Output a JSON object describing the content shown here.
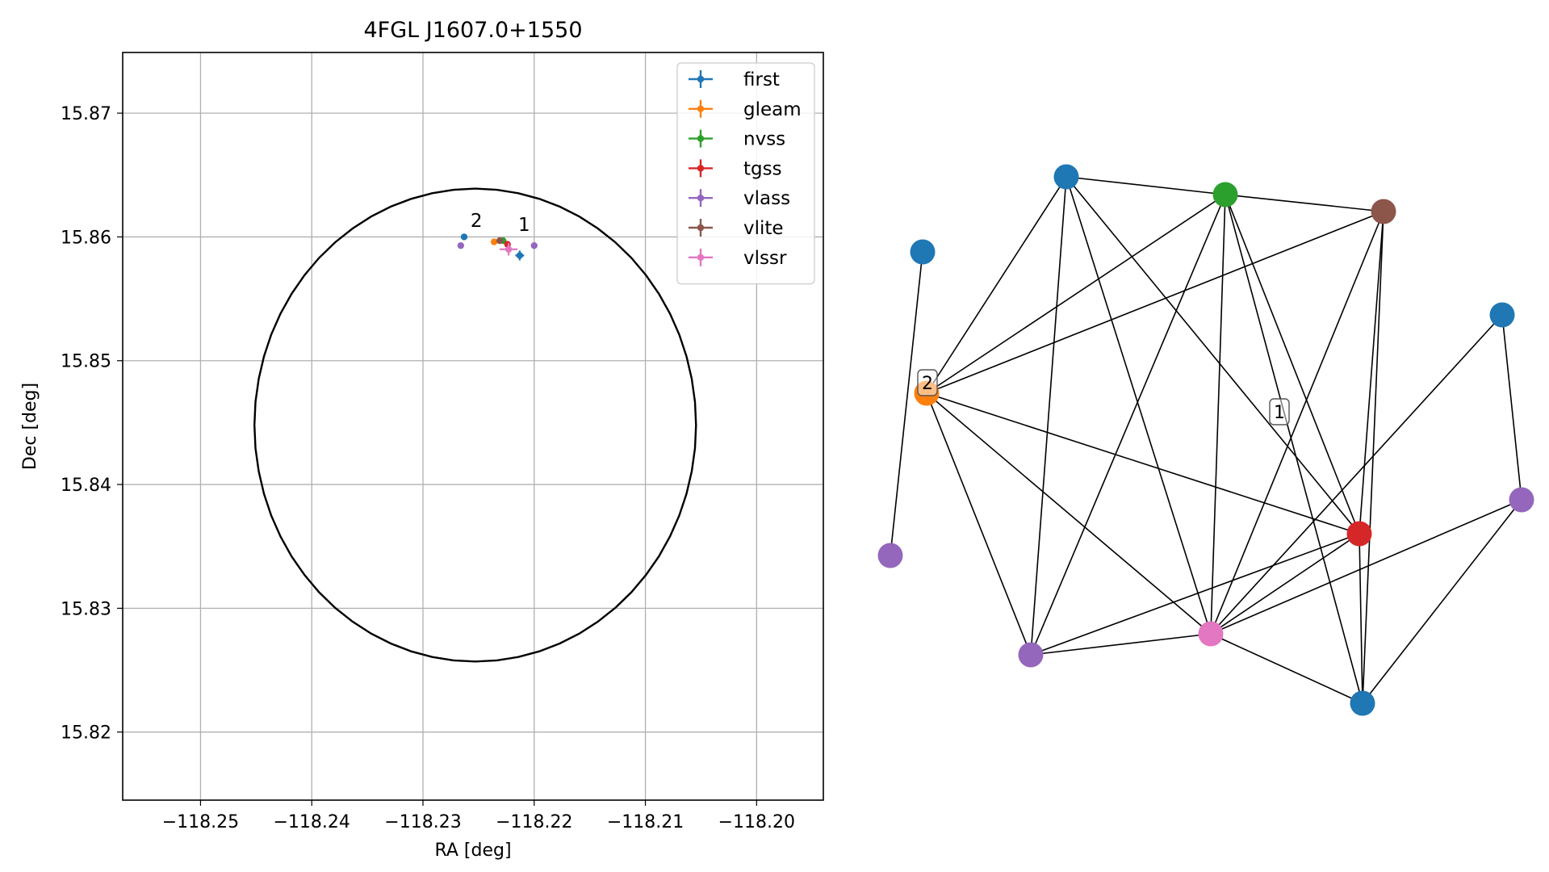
{
  "chart_data": [
    {
      "type": "scatter",
      "title": "4FGL J1607.0+1550",
      "xlabel": "RA [deg]",
      "ylabel": "Dec [deg]",
      "xlim": [
        -118.257,
        -118.194
      ],
      "ylim": [
        15.8145,
        15.8749
      ],
      "xticks": [
        -118.25,
        -118.24,
        -118.23,
        -118.22,
        -118.21,
        -118.2
      ],
      "xtick_labels": [
        "−118.25",
        "−118.24",
        "−118.23",
        "−118.22",
        "−118.21",
        "−118.20"
      ],
      "yticks": [
        15.82,
        15.83,
        15.84,
        15.85,
        15.86,
        15.87
      ],
      "ytick_labels": [
        "15.82",
        "15.83",
        "15.84",
        "15.85",
        "15.86",
        "15.87"
      ],
      "grid": true,
      "legend_position": "upper right",
      "circle": {
        "center": [
          -118.2253,
          15.8448
        ],
        "radius_dec": 0.0191,
        "color": "#000000"
      },
      "series": [
        {
          "name": "first",
          "color": "#1f77b4",
          "points": [
            {
              "x": -118.2213,
              "y": 15.8585,
              "xerr": 0.0004,
              "yerr": 0.0004
            },
            {
              "x": -118.2263,
              "y": 15.86
            }
          ]
        },
        {
          "name": "gleam",
          "color": "#ff7f0e",
          "points": [
            {
              "x": -118.2236,
              "y": 15.8596
            }
          ]
        },
        {
          "name": "nvss",
          "color": "#2ca02c",
          "points": [
            {
              "x": -118.2228,
              "y": 15.8597
            }
          ]
        },
        {
          "name": "tgss",
          "color": "#d62728",
          "points": [
            {
              "x": -118.2224,
              "y": 15.8594
            }
          ]
        },
        {
          "name": "vlass",
          "color": "#9467bd",
          "points": [
            {
              "x": -118.22,
              "y": 15.8593
            },
            {
              "x": -118.2266,
              "y": 15.8593
            }
          ]
        },
        {
          "name": "vlite",
          "color": "#8c564b",
          "points": [
            {
              "x": -118.2231,
              "y": 15.8597
            }
          ]
        },
        {
          "name": "vlssr",
          "color": "#e377c2",
          "points": [
            {
              "x": -118.2223,
              "y": 15.859,
              "xerr": 0.0008,
              "yerr": 0.0005
            }
          ]
        }
      ],
      "annotations": [
        {
          "text": "2",
          "x": -118.2252,
          "y": 15.8608
        },
        {
          "text": "1",
          "x": -118.2209,
          "y": 15.8605
        }
      ]
    },
    {
      "type": "network",
      "node_colors": {
        "first": "#1f77b4",
        "gleam": "#ff7f0e",
        "nvss": "#2ca02c",
        "tgss": "#d62728",
        "vlass": "#9467bd",
        "vlite": "#8c564b",
        "vlssr": "#e377c2"
      },
      "nodes": [
        {
          "id": "first_a",
          "survey": "first"
        },
        {
          "id": "first_b",
          "survey": "first"
        },
        {
          "id": "first_c",
          "survey": "first"
        },
        {
          "id": "first_d",
          "survey": "first"
        },
        {
          "id": "gleam",
          "survey": "gleam"
        },
        {
          "id": "nvss",
          "survey": "nvss"
        },
        {
          "id": "vlite",
          "survey": "vlite"
        },
        {
          "id": "tgss",
          "survey": "tgss"
        },
        {
          "id": "vlssr",
          "survey": "vlssr"
        },
        {
          "id": "vlass_a",
          "survey": "vlass"
        },
        {
          "id": "vlass_b",
          "survey": "vlass"
        },
        {
          "id": "vlass_c",
          "survey": "vlass"
        }
      ],
      "edges": [
        [
          "first_b",
          "vlass_a"
        ],
        [
          "first_a",
          "gleam"
        ],
        [
          "first_a",
          "nvss"
        ],
        [
          "first_a",
          "vlass_b"
        ],
        [
          "first_a",
          "vlssr"
        ],
        [
          "first_a",
          "tgss"
        ],
        [
          "nvss",
          "vlite"
        ],
        [
          "nvss",
          "gleam"
        ],
        [
          "nvss",
          "vlass_b"
        ],
        [
          "nvss",
          "vlssr"
        ],
        [
          "nvss",
          "tgss"
        ],
        [
          "nvss",
          "first_d"
        ],
        [
          "vlite",
          "gleam"
        ],
        [
          "vlite",
          "vlssr"
        ],
        [
          "vlite",
          "tgss"
        ],
        [
          "vlite",
          "first_d"
        ],
        [
          "gleam",
          "tgss"
        ],
        [
          "gleam",
          "vlass_b"
        ],
        [
          "gleam",
          "vlssr"
        ],
        [
          "tgss",
          "vlass_b"
        ],
        [
          "tgss",
          "vlssr"
        ],
        [
          "tgss",
          "first_d"
        ],
        [
          "vlass_b",
          "vlssr"
        ],
        [
          "vlssr",
          "first_d"
        ],
        [
          "vlssr",
          "vlass_c"
        ],
        [
          "vlssr",
          "first_c"
        ],
        [
          "first_d",
          "vlass_c"
        ],
        [
          "first_c",
          "vlass_c"
        ]
      ],
      "labels": [
        {
          "text": "2",
          "node": "gleam"
        },
        {
          "text": "1"
        }
      ]
    }
  ]
}
